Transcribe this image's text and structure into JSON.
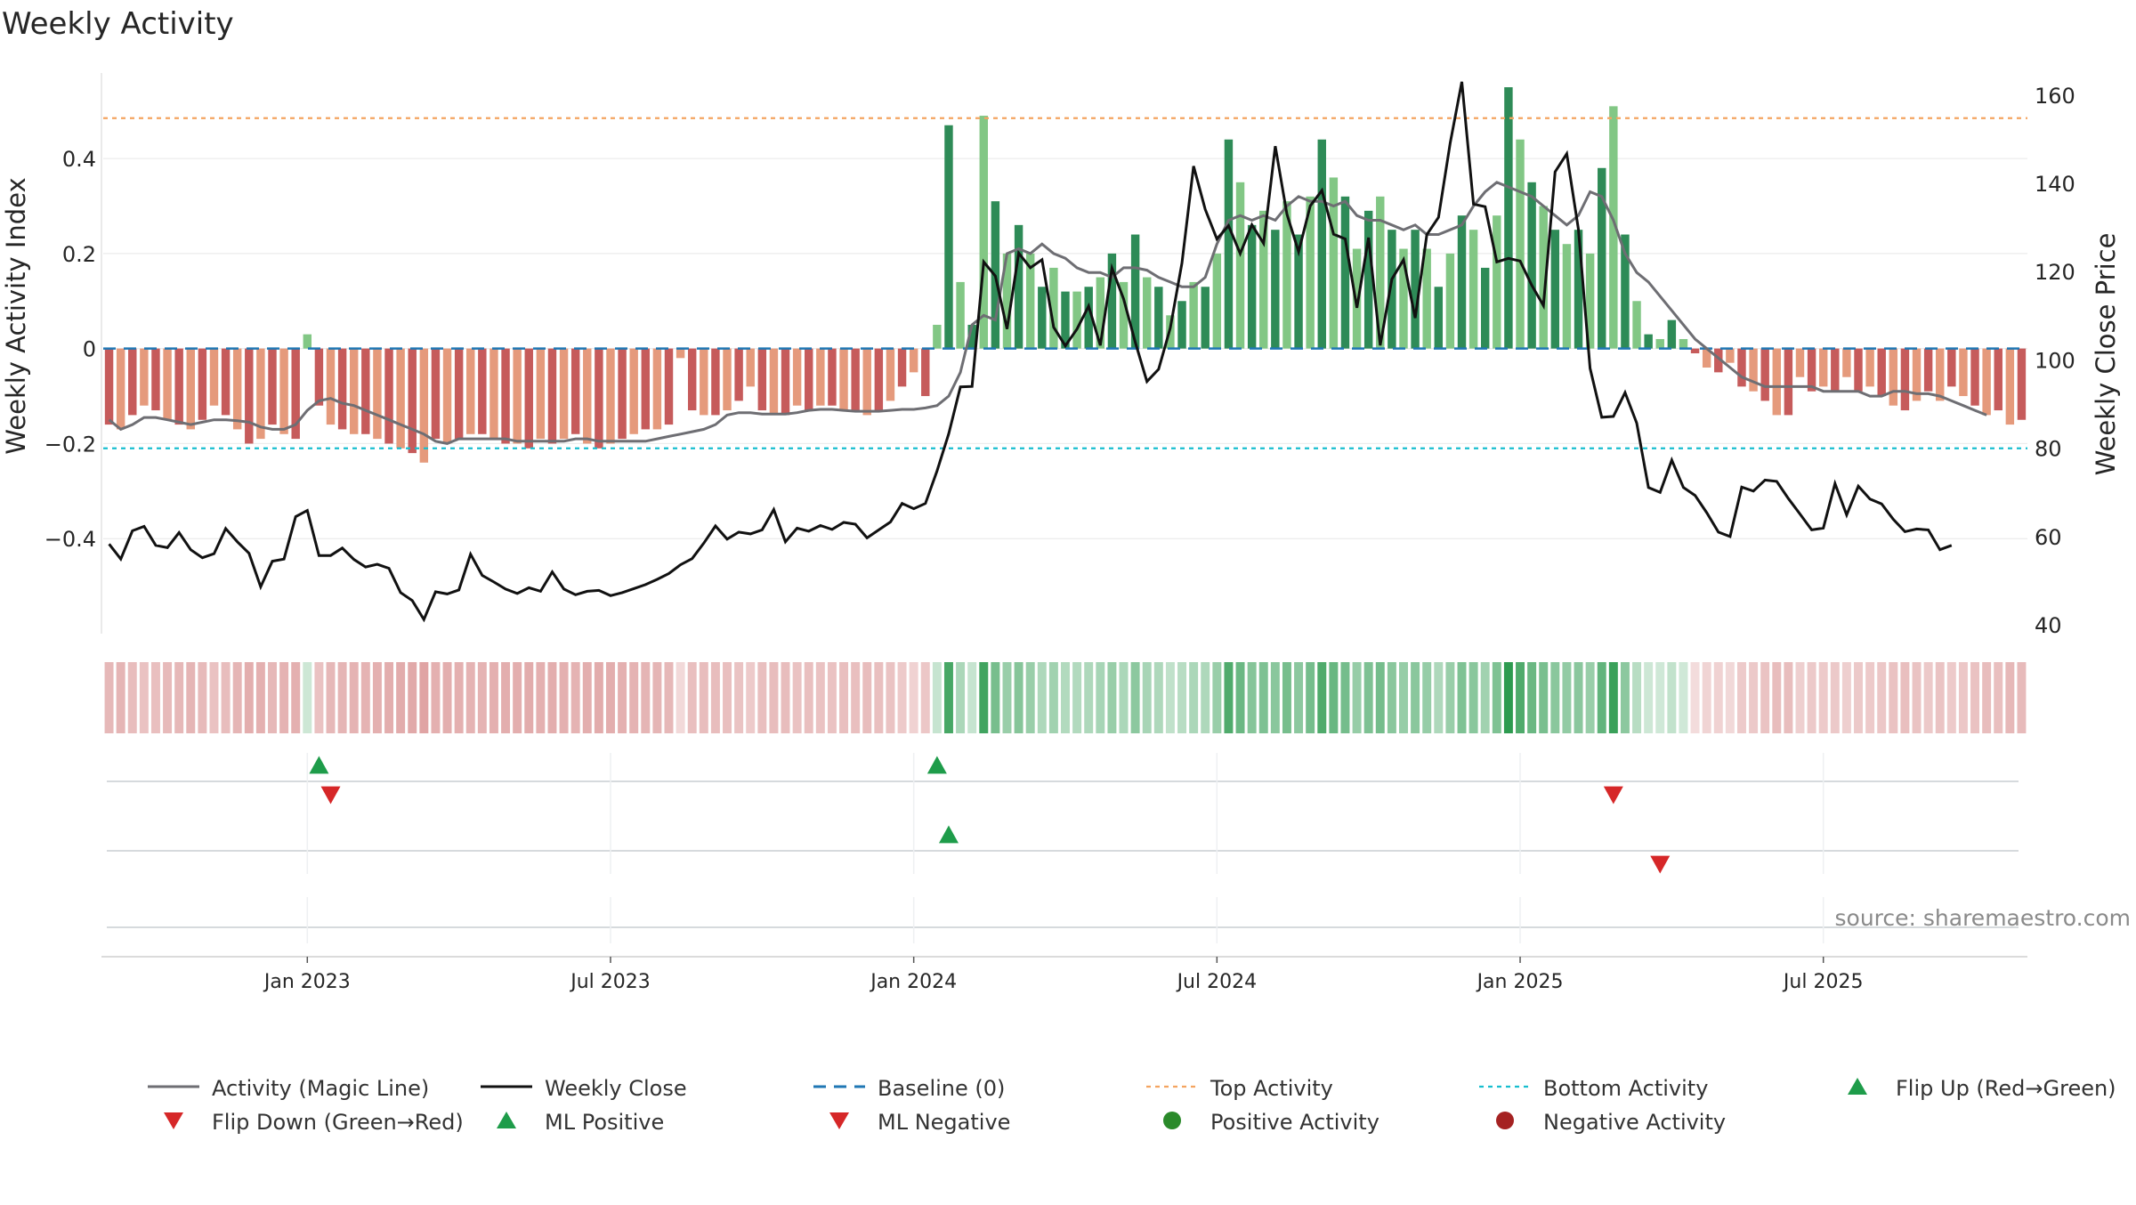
{
  "title": "Weekly Activity",
  "source": "source: sharemaestro.com",
  "colors": {
    "pos_dark": "#2E8B57",
    "pos_light": "#82C785",
    "neg_dark": "#C65B5B",
    "neg_light": "#E59A7C",
    "magic_line": "#6E6E73",
    "close_line": "#111111",
    "baseline": "#1F77B4",
    "top_line": "#F4A460",
    "bottom_line": "#17BECF",
    "flip_up": "#1E9C4A",
    "flip_down": "#D62728",
    "ml_pos": "#1E9C4A",
    "ml_neg": "#D62728",
    "pos_dot": "#2A8A2A",
    "neg_dot": "#A52222"
  },
  "chart_data": {
    "type": "bar",
    "title": "Weekly Activity",
    "ylabel": "Weekly Activity Index",
    "y2label": "Weekly Close Price",
    "ylim": [
      -0.6,
      0.58
    ],
    "y2lim": [
      38,
      165
    ],
    "yticks": [
      {
        "v": 0.4,
        "label": "0.4"
      },
      {
        "v": 0.2,
        "label": "0.2"
      },
      {
        "v": 0,
        "label": "0"
      },
      {
        "v": -0.2,
        "label": "−0.2"
      },
      {
        "v": -0.4,
        "label": "−0.4"
      }
    ],
    "y2ticks": [
      {
        "v": 160,
        "label": "160"
      },
      {
        "v": 140,
        "label": "140"
      },
      {
        "v": 120,
        "label": "120"
      },
      {
        "v": 100,
        "label": "100"
      },
      {
        "v": 80,
        "label": "80"
      },
      {
        "v": 60,
        "label": "60"
      },
      {
        "v": 40,
        "label": "40"
      }
    ],
    "xticks": [
      {
        "week": 17,
        "label": "Jan 2023"
      },
      {
        "week": 43,
        "label": "Jul 2023"
      },
      {
        "week": 69,
        "label": "Jan 2024"
      },
      {
        "week": 95,
        "label": "Jul 2024"
      },
      {
        "week": 121,
        "label": "Jan 2025"
      },
      {
        "week": 147,
        "label": "Jul 2025"
      }
    ],
    "top_activity": 0.485,
    "bottom_activity": -0.21,
    "baseline": 0,
    "activity": [
      -0.16,
      -0.17,
      -0.14,
      -0.12,
      -0.13,
      -0.15,
      -0.16,
      -0.17,
      -0.15,
      -0.12,
      -0.14,
      -0.17,
      -0.2,
      -0.19,
      -0.16,
      -0.18,
      -0.19,
      0.03,
      -0.12,
      -0.16,
      -0.17,
      -0.18,
      -0.18,
      -0.19,
      -0.2,
      -0.21,
      -0.22,
      -0.24,
      -0.19,
      -0.2,
      -0.19,
      -0.18,
      -0.18,
      -0.19,
      -0.2,
      -0.2,
      -0.21,
      -0.19,
      -0.2,
      -0.19,
      -0.18,
      -0.2,
      -0.21,
      -0.2,
      -0.19,
      -0.18,
      -0.17,
      -0.17,
      -0.16,
      -0.02,
      -0.13,
      -0.14,
      -0.14,
      -0.13,
      -0.11,
      -0.08,
      -0.13,
      -0.14,
      -0.14,
      -0.12,
      -0.13,
      -0.12,
      -0.12,
      -0.13,
      -0.13,
      -0.14,
      -0.13,
      -0.11,
      -0.08,
      -0.05,
      -0.1,
      0.05,
      0.47,
      0.14,
      0.05,
      0.49,
      0.31,
      0.2,
      0.26,
      0.2,
      0.13,
      0.17,
      0.12,
      0.12,
      0.13,
      0.15,
      0.2,
      0.14,
      0.24,
      0.15,
      0.13,
      0.07,
      0.1,
      0.14,
      0.13,
      0.2,
      0.44,
      0.35,
      0.26,
      0.29,
      0.25,
      0.31,
      0.24,
      0.32,
      0.44,
      0.36,
      0.32,
      0.21,
      0.29,
      0.32,
      0.25,
      0.21,
      0.25,
      0.21,
      0.13,
      0.2,
      0.28,
      0.25,
      0.17,
      0.28,
      0.55,
      0.44,
      0.35,
      0.3,
      0.25,
      0.22,
      0.25,
      0.2,
      0.38,
      0.51,
      0.24,
      0.1,
      0.03,
      0.02,
      0.06,
      0.02,
      -0.01,
      -0.04,
      -0.05,
      -0.03,
      -0.08,
      -0.09,
      -0.11,
      -0.14,
      -0.14,
      -0.06,
      -0.09,
      -0.08,
      -0.09,
      -0.06,
      -0.09,
      -0.08,
      -0.1,
      -0.12,
      -0.13,
      -0.11,
      -0.09,
      -0.11,
      -0.08,
      -0.1,
      -0.12,
      -0.14,
      -0.13,
      -0.16,
      -0.15
    ],
    "magic_line": [
      -0.15,
      -0.17,
      -0.16,
      -0.145,
      -0.145,
      -0.15,
      -0.155,
      -0.16,
      -0.155,
      -0.15,
      -0.15,
      -0.152,
      -0.155,
      -0.165,
      -0.17,
      -0.17,
      -0.16,
      -0.13,
      -0.11,
      -0.105,
      -0.115,
      -0.12,
      -0.13,
      -0.14,
      -0.15,
      -0.16,
      -0.17,
      -0.18,
      -0.195,
      -0.2,
      -0.19,
      -0.19,
      -0.19,
      -0.19,
      -0.19,
      -0.195,
      -0.195,
      -0.195,
      -0.195,
      -0.195,
      -0.19,
      -0.19,
      -0.195,
      -0.195,
      -0.195,
      -0.195,
      -0.195,
      -0.19,
      -0.185,
      -0.18,
      -0.175,
      -0.17,
      -0.16,
      -0.14,
      -0.135,
      -0.135,
      -0.138,
      -0.138,
      -0.138,
      -0.135,
      -0.13,
      -0.128,
      -0.128,
      -0.13,
      -0.132,
      -0.132,
      -0.132,
      -0.13,
      -0.128,
      -0.128,
      -0.125,
      -0.12,
      -0.1,
      -0.05,
      0.05,
      0.07,
      0.06,
      0.2,
      0.21,
      0.2,
      0.22,
      0.2,
      0.19,
      0.17,
      0.16,
      0.16,
      0.15,
      0.17,
      0.17,
      0.165,
      0.15,
      0.14,
      0.13,
      0.13,
      0.15,
      0.22,
      0.27,
      0.28,
      0.27,
      0.28,
      0.27,
      0.3,
      0.32,
      0.31,
      0.31,
      0.3,
      0.31,
      0.28,
      0.27,
      0.27,
      0.26,
      0.25,
      0.26,
      0.24,
      0.24,
      0.25,
      0.26,
      0.3,
      0.33,
      0.35,
      0.34,
      0.33,
      0.32,
      0.3,
      0.28,
      0.26,
      0.28,
      0.33,
      0.32,
      0.27,
      0.2,
      0.16,
      0.14,
      0.11,
      0.08,
      0.05,
      0.02,
      0.0,
      -0.02,
      -0.04,
      -0.06,
      -0.07,
      -0.08,
      -0.08,
      -0.08,
      -0.08,
      -0.08,
      -0.09,
      -0.09,
      -0.09,
      -0.09,
      -0.1,
      -0.1,
      -0.09,
      -0.09,
      -0.095,
      -0.095,
      -0.1,
      -0.11,
      -0.12,
      -0.13,
      -0.14
    ],
    "weekly_close": [
      58.3,
      54.9,
      61.3,
      62.3,
      58.0,
      57.5,
      60.9,
      57.0,
      55.2,
      56.1,
      61.8,
      58.8,
      56.2,
      48.6,
      54.4,
      54.9,
      64.5,
      65.9,
      55.7,
      55.7,
      57.4,
      54.8,
      53.1,
      53.7,
      52.8,
      47.3,
      45.5,
      41.2,
      47.5,
      47.0,
      47.9,
      56.0,
      51.2,
      49.7,
      48.1,
      47.1,
      48.4,
      47.6,
      52.0,
      48.1,
      46.8,
      47.6,
      47.8,
      46.6,
      47.3,
      48.2,
      49.1,
      50.3,
      51.6,
      53.6,
      55.0,
      58.5,
      62.4,
      59.4,
      61.0,
      60.6,
      61.5,
      66.1,
      58.8,
      61.9,
      61.2,
      62.5,
      61.6,
      63.2,
      62.8,
      59.7,
      61.5,
      63.3,
      67.5,
      66.3,
      67.5,
      74.9,
      83.3,
      93.9,
      94.0,
      122.2,
      119.0,
      107.0,
      124.2,
      120.9,
      122.7,
      107.4,
      103.2,
      107.0,
      112.2,
      103.3,
      120.8,
      113.8,
      104.0,
      95.1,
      97.9,
      107.2,
      121.9,
      143.9,
      134.1,
      127.4,
      130.4,
      124.1,
      130.6,
      126.4,
      148.4,
      133.0,
      124.5,
      134.9,
      138.4,
      128.5,
      127.4,
      111.8,
      127.7,
      103.3,
      118.3,
      122.7,
      109.5,
      128.4,
      132.3,
      149.1,
      163.0,
      135.3,
      134.7,
      122.2,
      123.0,
      122.4,
      116.9,
      112.3,
      142.6,
      146.7,
      129.6,
      98.1,
      87.0,
      87.2,
      92.6,
      85.7,
      71.1,
      70.0,
      77.3,
      71.1,
      69.3,
      65.4,
      61.0,
      60.0,
      71.2,
      70.3,
      72.8,
      72.5,
      68.6,
      65.1,
      61.5,
      61.9,
      72.0,
      64.9,
      71.4,
      68.5,
      67.4,
      63.9,
      61.1,
      61.7,
      61.5,
      57.0,
      58.0
    ],
    "flip_up": [
      18,
      71
    ],
    "flip_down": [
      19,
      129
    ],
    "ml_positive": [
      72
    ],
    "ml_negative": [
      133
    ]
  },
  "legend": [
    {
      "label": "Activity (Magic Line)",
      "kind": "line",
      "color": "#6E6E73"
    },
    {
      "label": "Weekly Close",
      "kind": "line",
      "color": "#111111"
    },
    {
      "label": "Baseline (0)",
      "kind": "dashed",
      "color": "#1F77B4"
    },
    {
      "label": "Top Activity",
      "kind": "dotted",
      "color": "#F4A460"
    },
    {
      "label": "Bottom Activity",
      "kind": "dotted",
      "color": "#17BECF"
    },
    {
      "label": "Flip Up (Red→Green)",
      "kind": "tri-up",
      "color": "#1E9C4A"
    },
    {
      "label": "Flip Down (Green→Red)",
      "kind": "tri-down",
      "color": "#D62728"
    },
    {
      "label": "ML Positive",
      "kind": "tri-up",
      "color": "#1E9C4A"
    },
    {
      "label": "ML Negative",
      "kind": "tri-down",
      "color": "#D62728"
    },
    {
      "label": "Positive Activity",
      "kind": "dot",
      "color": "#2A8A2A"
    },
    {
      "label": "Negative Activity",
      "kind": "dot",
      "color": "#A52222"
    }
  ]
}
